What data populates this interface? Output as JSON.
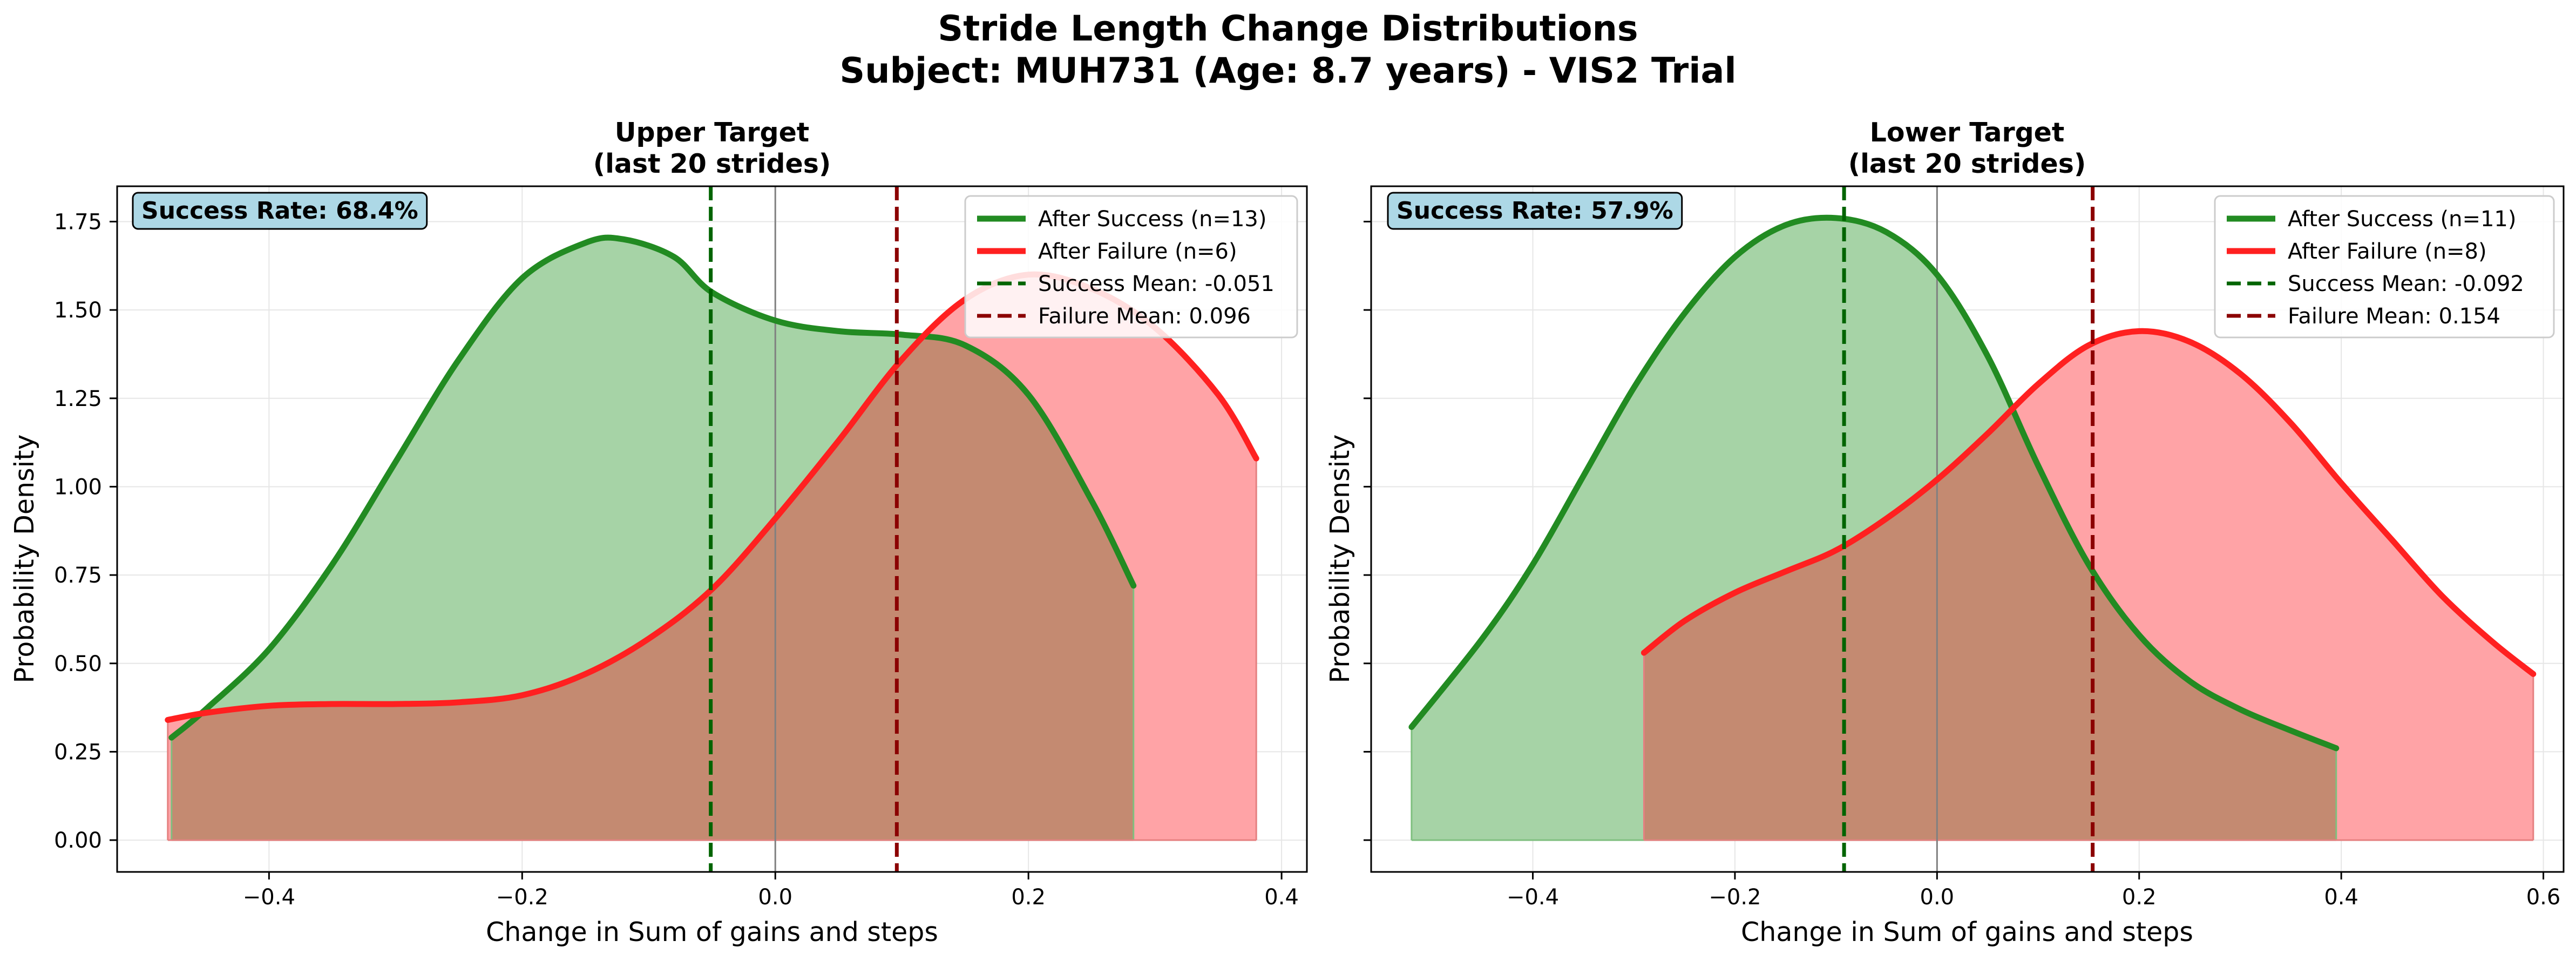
{
  "figure": {
    "suptitle_line1": "Stride Length Change Distributions",
    "suptitle_line2": "Subject: MUH731 (Age: 8.7 years) - VIS2 Trial"
  },
  "colors": {
    "success_line": "#228B22",
    "failure_line": "#FF2020",
    "success_fill": "#A6D3A6",
    "failure_fill": "#FFA3A6",
    "overlap_fill": "#C48A71",
    "success_mean": "#006400",
    "failure_mean": "#8B0000",
    "zero_line": "#808080",
    "grid": "#E6E6E6",
    "box_fill": "#ADD8E6"
  },
  "chart_data": [
    {
      "type": "area",
      "title_line1": "Upper Target",
      "title_line2": "(last 20 strides)",
      "xlabel": "Change in Sum of gains and steps",
      "ylabel": "Probability Density",
      "xlim": [
        -0.52,
        0.42
      ],
      "ylim": [
        -0.09,
        1.85
      ],
      "xticks": [
        -0.4,
        -0.2,
        0.0,
        0.2,
        0.4
      ],
      "xticklabels": [
        "−0.4",
        "−0.2",
        "0.0",
        "0.2",
        "0.4"
      ],
      "yticks": [
        0,
        0.25,
        0.5,
        0.75,
        1.0,
        1.25,
        1.5,
        1.75
      ],
      "yticklabels": [
        "0.00",
        "0.25",
        "0.50",
        "0.75",
        "1.00",
        "1.25",
        "1.50",
        "1.75"
      ],
      "show_yticklabels": true,
      "grid": true,
      "legend_position": "top-right",
      "annotation": "Success Rate: 68.4%",
      "series": [
        {
          "name": "After Success (n=13)",
          "kind": "success",
          "points": [
            [
              -0.477,
              0.29
            ],
            [
              -0.45,
              0.37
            ],
            [
              -0.4,
              0.54
            ],
            [
              -0.35,
              0.78
            ],
            [
              -0.3,
              1.07
            ],
            [
              -0.25,
              1.36
            ],
            [
              -0.2,
              1.59
            ],
            [
              -0.15,
              1.69
            ],
            [
              -0.12,
              1.7
            ],
            [
              -0.08,
              1.65
            ],
            [
              -0.05,
              1.55
            ],
            [
              0.0,
              1.47
            ],
            [
              0.05,
              1.44
            ],
            [
              0.1,
              1.43
            ],
            [
              0.15,
              1.4
            ],
            [
              0.2,
              1.26
            ],
            [
              0.25,
              0.96
            ],
            [
              0.283,
              0.72
            ]
          ]
        },
        {
          "name": "After Failure (n=6)",
          "kind": "failure",
          "points": [
            [
              -0.48,
              0.34
            ],
            [
              -0.45,
              0.36
            ],
            [
              -0.4,
              0.38
            ],
            [
              -0.35,
              0.385
            ],
            [
              -0.3,
              0.385
            ],
            [
              -0.25,
              0.39
            ],
            [
              -0.2,
              0.41
            ],
            [
              -0.15,
              0.47
            ],
            [
              -0.1,
              0.57
            ],
            [
              -0.05,
              0.71
            ],
            [
              0.0,
              0.91
            ],
            [
              0.05,
              1.13
            ],
            [
              0.1,
              1.36
            ],
            [
              0.15,
              1.53
            ],
            [
              0.2,
              1.6
            ],
            [
              0.25,
              1.56
            ],
            [
              0.3,
              1.45
            ],
            [
              0.35,
              1.26
            ],
            [
              0.38,
              1.08
            ]
          ]
        }
      ],
      "mean_lines": [
        {
          "name": "Success Mean: -0.051",
          "kind": "success",
          "x": -0.051
        },
        {
          "name": "Failure Mean: 0.096",
          "kind": "failure",
          "x": 0.096
        }
      ]
    },
    {
      "type": "area",
      "title_line1": "Lower Target",
      "title_line2": "(last 20 strides)",
      "xlabel": "Change in Sum of gains and steps",
      "ylabel": "Probability Density",
      "xlim": [
        -0.56,
        0.62
      ],
      "ylim": [
        -0.09,
        1.85
      ],
      "xticks": [
        -0.4,
        -0.2,
        0.0,
        0.2,
        0.4,
        0.6
      ],
      "xticklabels": [
        "−0.4",
        "−0.2",
        "0.0",
        "0.2",
        "0.4",
        "0.6"
      ],
      "yticks": [
        0,
        0.25,
        0.5,
        0.75,
        1.0,
        1.25,
        1.5,
        1.75
      ],
      "show_yticklabels": false,
      "grid": true,
      "legend_position": "top-right",
      "annotation": "Success Rate: 57.9%",
      "series": [
        {
          "name": "After Success (n=11)",
          "kind": "success",
          "points": [
            [
              -0.52,
              0.32
            ],
            [
              -0.45,
              0.57
            ],
            [
              -0.4,
              0.78
            ],
            [
              -0.35,
              1.03
            ],
            [
              -0.3,
              1.28
            ],
            [
              -0.25,
              1.49
            ],
            [
              -0.2,
              1.65
            ],
            [
              -0.15,
              1.74
            ],
            [
              -0.1,
              1.76
            ],
            [
              -0.05,
              1.72
            ],
            [
              0.0,
              1.6
            ],
            [
              0.05,
              1.37
            ],
            [
              0.1,
              1.06
            ],
            [
              0.15,
              0.78
            ],
            [
              0.2,
              0.58
            ],
            [
              0.25,
              0.45
            ],
            [
              0.3,
              0.37
            ],
            [
              0.35,
              0.31
            ],
            [
              0.395,
              0.26
            ]
          ]
        },
        {
          "name": "After Failure (n=8)",
          "kind": "failure",
          "points": [
            [
              -0.29,
              0.53
            ],
            [
              -0.25,
              0.62
            ],
            [
              -0.2,
              0.7
            ],
            [
              -0.15,
              0.76
            ],
            [
              -0.1,
              0.82
            ],
            [
              -0.05,
              0.91
            ],
            [
              0.0,
              1.02
            ],
            [
              0.05,
              1.15
            ],
            [
              0.1,
              1.29
            ],
            [
              0.15,
              1.4
            ],
            [
              0.2,
              1.44
            ],
            [
              0.25,
              1.41
            ],
            [
              0.3,
              1.32
            ],
            [
              0.35,
              1.18
            ],
            [
              0.4,
              1.01
            ],
            [
              0.45,
              0.85
            ],
            [
              0.5,
              0.69
            ],
            [
              0.55,
              0.56
            ],
            [
              0.59,
              0.47
            ]
          ]
        }
      ],
      "mean_lines": [
        {
          "name": "Success Mean: -0.092",
          "kind": "success",
          "x": -0.092
        },
        {
          "name": "Failure Mean: 0.154",
          "kind": "failure",
          "x": 0.154
        }
      ]
    }
  ]
}
